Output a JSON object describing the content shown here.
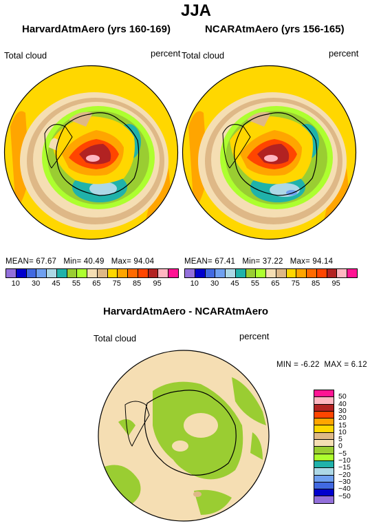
{
  "title": "JJA",
  "panels": [
    {
      "heading": "HarvardAtmAero (yrs 160-169)",
      "field": "Total cloud",
      "units": "percent",
      "stats": {
        "mean_label": "MEAN=",
        "mean": "67.67",
        "min_label": "Min=",
        "min": "40.49",
        "max_label": "Max=",
        "max": "94.04"
      }
    },
    {
      "heading": "NCARAtmAero (yrs 156-165)",
      "field": "Total cloud",
      "units": "percent",
      "stats": {
        "mean_label": "MEAN=",
        "mean": "67.41",
        "min_label": "Min=",
        "min": "37.22",
        "max_label": "Max=",
        "max": "94.14"
      }
    }
  ],
  "abs_colorbar": {
    "colors": [
      "#9370db",
      "#0000cd",
      "#4169e1",
      "#6fa0f0",
      "#add8e6",
      "#20b2aa",
      "#9acd32",
      "#adff2f",
      "#f5deb3",
      "#deb887",
      "#ffd700",
      "#ffa500",
      "#ff6a00",
      "#ff4500",
      "#b22222",
      "#ffb6c1",
      "#ff1493"
    ],
    "labels": [
      "10",
      "30",
      "45",
      "55",
      "65",
      "75",
      "85",
      "95"
    ]
  },
  "diff_panel": {
    "heading": "HarvardAtmAero - NCARAtmAero",
    "field": "Total cloud",
    "units": "percent",
    "stats": {
      "min_label": "MIN =",
      "min": "-6.22",
      "max_label": "MAX =",
      "max": "6.12"
    }
  },
  "diff_colorbar": {
    "colors": [
      "#ff1493",
      "#ffb6c1",
      "#b22222",
      "#ff4500",
      "#ffa500",
      "#ffd700",
      "#deb887",
      "#f5deb3",
      "#9acd32",
      "#adff2f",
      "#20b2aa",
      "#add8e6",
      "#6fa0f0",
      "#4169e1",
      "#0000cd",
      "#9370db"
    ],
    "labels": [
      "50",
      "40",
      "30",
      "20",
      "15",
      "10",
      "5",
      "0",
      "−5",
      "−10",
      "−15",
      "−20",
      "−30",
      "−40",
      "−50"
    ]
  }
}
